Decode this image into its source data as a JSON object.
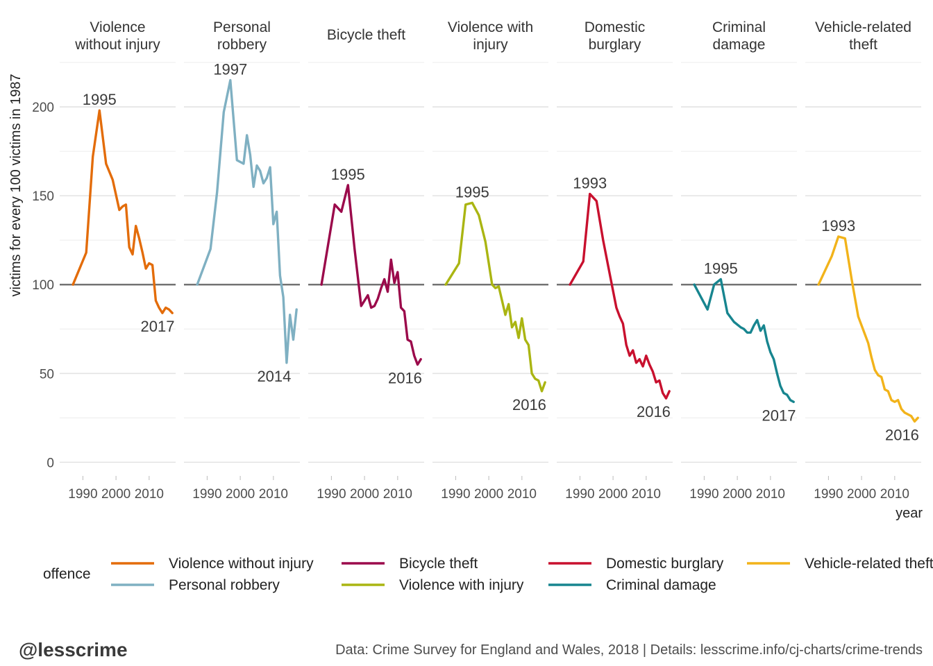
{
  "chart_data": {
    "type": "line",
    "ylabel": "victims for every 100 victims in 1987",
    "xlabel": "year",
    "ylim": [
      -10,
      225
    ],
    "xlim": [
      1983,
      2018
    ],
    "x_ticks": [
      1990,
      2000,
      2010
    ],
    "y_ticks": [
      0,
      50,
      100,
      150,
      200
    ],
    "reference_line": 100,
    "grid": true,
    "legend_title": "offence",
    "legend_position": "bottom",
    "facets": [
      {
        "name": "Violence without injury",
        "title_lines": [
          "Violence",
          "without injury"
        ],
        "color": "#E36C0A",
        "x": [
          1987,
          1991,
          1993,
          1995,
          1997,
          1999,
          2001,
          2002,
          2003,
          2004,
          2005,
          2006,
          2007,
          2008,
          2009,
          2010,
          2011,
          2012,
          2013,
          2014,
          2015,
          2016,
          2017
        ],
        "y": [
          100,
          118,
          172,
          198,
          168,
          159,
          142,
          144,
          145,
          121,
          117,
          133,
          126,
          118,
          109,
          112,
          111,
          91,
          87,
          84,
          87,
          86,
          84
        ],
        "annotations": [
          {
            "text": "1995",
            "x": 1995,
            "y": 198,
            "pos": "above"
          },
          {
            "text": "2017",
            "x": 2017,
            "y": 84,
            "pos": "below"
          }
        ]
      },
      {
        "name": "Personal robbery",
        "title_lines": [
          "Personal",
          "robbery"
        ],
        "color": "#7FB0C2",
        "x": [
          1987,
          1991,
          1993,
          1995,
          1997,
          1999,
          2001,
          2002,
          2003,
          2004,
          2005,
          2006,
          2007,
          2008,
          2009,
          2010,
          2011,
          2012,
          2013,
          2014,
          2015,
          2016,
          2017
        ],
        "y": [
          100,
          120,
          152,
          197,
          215,
          170,
          168,
          184,
          173,
          155,
          167,
          164,
          157,
          160,
          166,
          134,
          141,
          105,
          93,
          56,
          83,
          69,
          86
        ],
        "annotations": [
          {
            "text": "1997",
            "x": 1997,
            "y": 215,
            "pos": "above"
          },
          {
            "text": "2014",
            "x": 2014,
            "y": 56,
            "pos": "below"
          }
        ]
      },
      {
        "name": "Bicycle theft",
        "title_lines": [
          "Bicycle theft"
        ],
        "color": "#9B0A4B",
        "x": [
          1987,
          1991,
          1993,
          1995,
          1997,
          1999,
          2001,
          2002,
          2003,
          2004,
          2005,
          2006,
          2007,
          2008,
          2009,
          2010,
          2011,
          2012,
          2013,
          2014,
          2015,
          2016,
          2017
        ],
        "y": [
          100,
          145,
          141,
          156,
          120,
          88,
          94,
          87,
          88,
          92,
          98,
          103,
          96,
          114,
          101,
          107,
          87,
          85,
          69,
          68,
          60,
          55,
          58
        ],
        "annotations": [
          {
            "text": "1995",
            "x": 1995,
            "y": 156,
            "pos": "above"
          },
          {
            "text": "2016",
            "x": 2016,
            "y": 55,
            "pos": "below"
          }
        ]
      },
      {
        "name": "Violence with injury",
        "title_lines": [
          "Violence with",
          "injury"
        ],
        "color": "#AAB512",
        "x": [
          1987,
          1991,
          1993,
          1995,
          1997,
          1999,
          2001,
          2002,
          2003,
          2004,
          2005,
          2006,
          2007,
          2008,
          2009,
          2010,
          2011,
          2012,
          2013,
          2014,
          2015,
          2016,
          2017
        ],
        "y": [
          100,
          112,
          145,
          146,
          139,
          124,
          100,
          98,
          99,
          91,
          83,
          89,
          76,
          79,
          70,
          81,
          69,
          66,
          50,
          47,
          46,
          40,
          45
        ],
        "annotations": [
          {
            "text": "1995",
            "x": 1995,
            "y": 146,
            "pos": "above"
          },
          {
            "text": "2016",
            "x": 2016,
            "y": 40,
            "pos": "below"
          }
        ]
      },
      {
        "name": "Domestic burglary",
        "title_lines": [
          "Domestic",
          "burglary"
        ],
        "color": "#C8102E",
        "x": [
          1987,
          1991,
          1993,
          1995,
          1997,
          1999,
          2001,
          2002,
          2003,
          2004,
          2005,
          2006,
          2007,
          2008,
          2009,
          2010,
          2011,
          2012,
          2013,
          2014,
          2015,
          2016,
          2017
        ],
        "y": [
          100,
          113,
          151,
          147,
          125,
          106,
          87,
          82,
          78,
          66,
          60,
          63,
          56,
          58,
          54,
          60,
          55,
          51,
          45,
          46,
          39,
          36,
          40
        ],
        "annotations": [
          {
            "text": "1993",
            "x": 1993,
            "y": 151,
            "pos": "above"
          },
          {
            "text": "2016",
            "x": 2016,
            "y": 36,
            "pos": "below"
          }
        ]
      },
      {
        "name": "Criminal damage",
        "title_lines": [
          "Criminal",
          "damage"
        ],
        "color": "#17858F",
        "x": [
          1987,
          1991,
          1993,
          1995,
          1997,
          1999,
          2001,
          2002,
          2003,
          2004,
          2005,
          2006,
          2007,
          2008,
          2009,
          2010,
          2011,
          2012,
          2013,
          2014,
          2015,
          2016,
          2017
        ],
        "y": [
          100,
          86,
          100,
          103,
          84,
          79,
          76,
          75,
          73,
          73,
          77,
          80,
          74,
          77,
          68,
          62,
          58,
          50,
          43,
          39,
          38,
          35,
          34
        ],
        "annotations": [
          {
            "text": "1995",
            "x": 1995,
            "y": 103,
            "pos": "above"
          },
          {
            "text": "2017",
            "x": 2017,
            "y": 34,
            "pos": "below"
          }
        ]
      },
      {
        "name": "Vehicle-related theft",
        "title_lines": [
          "Vehicle-related",
          "theft"
        ],
        "color": "#F2B31A",
        "x": [
          1987,
          1991,
          1993,
          1995,
          1997,
          1999,
          2001,
          2002,
          2003,
          2004,
          2005,
          2006,
          2007,
          2008,
          2009,
          2010,
          2011,
          2012,
          2013,
          2014,
          2015,
          2016,
          2017
        ],
        "y": [
          100,
          116,
          127,
          126,
          103,
          82,
          72,
          67,
          59,
          52,
          49,
          48,
          41,
          40,
          35,
          34,
          35,
          30,
          28,
          27,
          26,
          23,
          25
        ],
        "annotations": [
          {
            "text": "1993",
            "x": 1993,
            "y": 127,
            "pos": "above"
          },
          {
            "text": "2016",
            "x": 2016,
            "y": 23,
            "pos": "below"
          }
        ]
      }
    ]
  },
  "legend": {
    "title": "offence",
    "items": [
      {
        "label": "Violence without injury",
        "color": "#E36C0A"
      },
      {
        "label": "Personal robbery",
        "color": "#7FB0C2"
      },
      {
        "label": "Bicycle theft",
        "color": "#9B0A4B"
      },
      {
        "label": "Violence with injury",
        "color": "#AAB512"
      },
      {
        "label": "Domestic burglary",
        "color": "#C8102E"
      },
      {
        "label": "Criminal damage",
        "color": "#17858F"
      },
      {
        "label": "Vehicle-related theft",
        "color": "#F2B31A"
      }
    ]
  },
  "footer": {
    "brand": "@lesscrime",
    "source": "Data: Crime Survey for England and Wales, 2018 |  Details: lesscrime.info/cj-charts/crime-trends"
  }
}
